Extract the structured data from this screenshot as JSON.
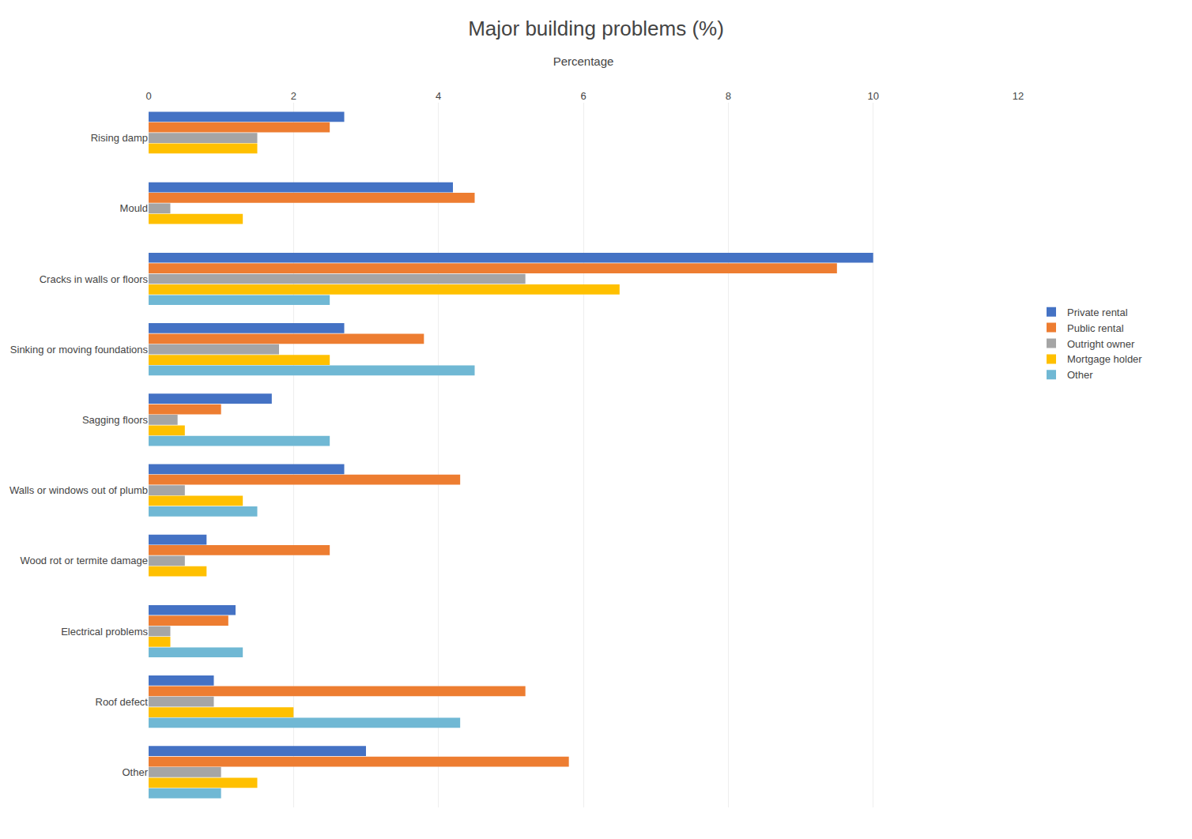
{
  "chart_data": {
    "type": "bar",
    "orientation": "horizontal",
    "title": "Major building problems (%)",
    "xlabel": "Percentage",
    "categories": [
      "Rising damp",
      "Mould",
      "Cracks in walls or floors",
      "Sinking or moving foundations",
      "Sagging floors",
      "Walls or windows out of plumb",
      "Wood rot or termite damage",
      "Electrical problems",
      "Roof defect",
      "Other"
    ],
    "series": [
      {
        "name": "Private rental",
        "color": "#4472C4",
        "values": [
          2.7,
          4.2,
          10.0,
          2.7,
          1.7,
          2.7,
          0.8,
          1.2,
          0.9,
          3.0
        ]
      },
      {
        "name": "Public rental",
        "color": "#ED7D31",
        "values": [
          2.5,
          4.5,
          9.5,
          3.8,
          1.0,
          4.3,
          2.5,
          1.1,
          5.2,
          5.8
        ]
      },
      {
        "name": "Outright owner",
        "color": "#A5A5A5",
        "values": [
          1.5,
          0.3,
          5.2,
          1.8,
          0.4,
          0.5,
          0.5,
          0.3,
          0.9,
          1.0
        ]
      },
      {
        "name": "Mortgage holder",
        "color": "#FFC000",
        "values": [
          1.5,
          1.3,
          6.5,
          2.5,
          0.5,
          1.3,
          0.8,
          0.3,
          2.0,
          1.5
        ]
      },
      {
        "name": "Other",
        "color": "#70B8D4",
        "values": [
          0.0,
          0.0,
          2.5,
          4.5,
          2.5,
          1.5,
          0.0,
          1.3,
          4.3,
          1.0
        ]
      }
    ],
    "xlim": [
      0,
      12
    ],
    "xticks": [
      0,
      2,
      4,
      6,
      8,
      10,
      12
    ],
    "grid": true,
    "legend": "right"
  }
}
